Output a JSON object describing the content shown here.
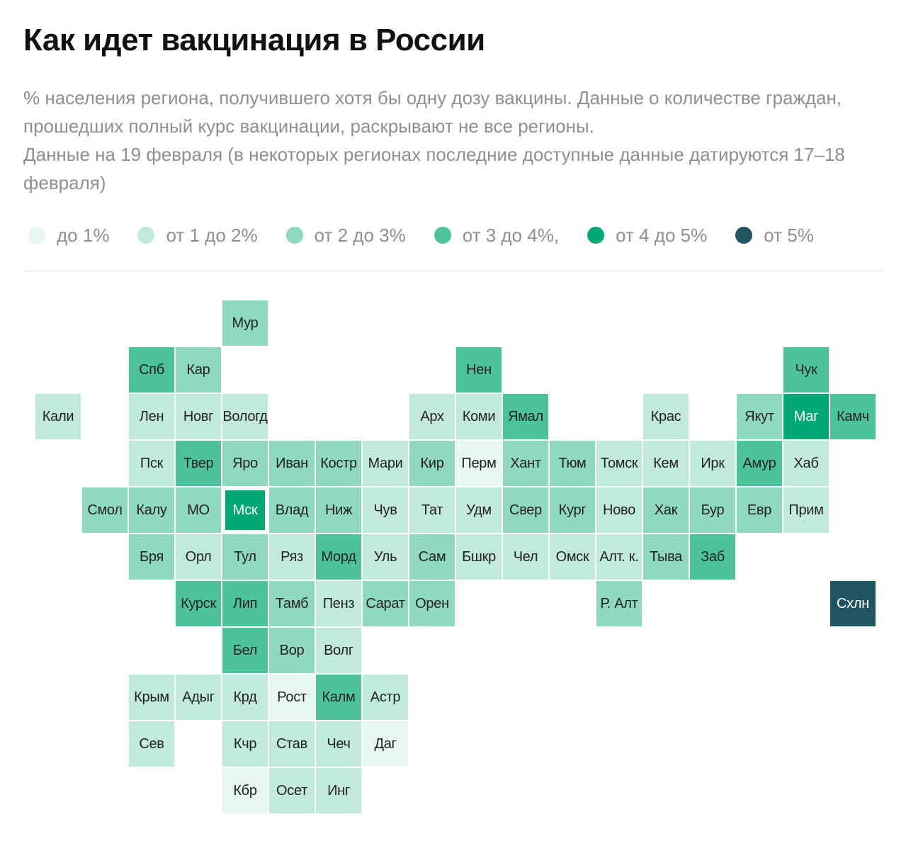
{
  "title": "Как идет вакцинация в России",
  "subtitle": {
    "line1": "% населения региона, получившего хотя бы одну дозу вакцины. Данные о количестве граждан, прошедших полный курс вакцинации, раскрывают не все регионы.",
    "line2": "Данные на 19 февраля (в некоторых регионах последние доступные данные датируются 17–18 февраля)"
  },
  "colors": {
    "c0": "#e6f6f0",
    "c1": "#c2eadb",
    "c2": "#8fd9be",
    "c3": "#4cc39b",
    "c4": "#00a874",
    "c5": "#1f5563"
  },
  "legend": [
    {
      "label": "до 1%",
      "bin": "c0"
    },
    {
      "label": "от 1 до 2%",
      "bin": "c1"
    },
    {
      "label": "от 2 до 3%",
      "bin": "c2"
    },
    {
      "label": "от 3 до 4%,",
      "bin": "c3"
    },
    {
      "label": "от 4 до 5%",
      "bin": "c4"
    },
    {
      "label": "от 5%",
      "bin": "c5"
    }
  ],
  "chart_data": {
    "type": "heatmap",
    "value_bins": [
      "до 1%",
      "от 1 до 2%",
      "от 2 до 3%",
      "от 3 до 4%,",
      "от 4 до 5%",
      "от 5%"
    ],
    "regions": [
      {
        "label": "Мур",
        "col": 4,
        "row": 0,
        "bin": 2
      },
      {
        "label": "Спб",
        "col": 2,
        "row": 1,
        "bin": 3
      },
      {
        "label": "Кар",
        "col": 3,
        "row": 1,
        "bin": 2
      },
      {
        "label": "Нен",
        "col": 9,
        "row": 1,
        "bin": 3
      },
      {
        "label": "Чук",
        "col": 16,
        "row": 1,
        "bin": 3
      },
      {
        "label": "Кали",
        "col": 0,
        "row": 2,
        "bin": 1
      },
      {
        "label": "Лен",
        "col": 2,
        "row": 2,
        "bin": 1
      },
      {
        "label": "Новг",
        "col": 3,
        "row": 2,
        "bin": 1
      },
      {
        "label": "Вологд",
        "col": 4,
        "row": 2,
        "bin": 1
      },
      {
        "label": "Арх",
        "col": 8,
        "row": 2,
        "bin": 1
      },
      {
        "label": "Коми",
        "col": 9,
        "row": 2,
        "bin": 1
      },
      {
        "label": "Ямал",
        "col": 10,
        "row": 2,
        "bin": 3
      },
      {
        "label": "Крас",
        "col": 13,
        "row": 2,
        "bin": 1
      },
      {
        "label": "Якут",
        "col": 15,
        "row": 2,
        "bin": 2
      },
      {
        "label": "Маг",
        "col": 16,
        "row": 2,
        "bin": 4
      },
      {
        "label": "Камч",
        "col": 17,
        "row": 2,
        "bin": 3
      },
      {
        "label": "Пск",
        "col": 2,
        "row": 3,
        "bin": 1
      },
      {
        "label": "Твер",
        "col": 3,
        "row": 3,
        "bin": 3
      },
      {
        "label": "Яро",
        "col": 4,
        "row": 3,
        "bin": 2
      },
      {
        "label": "Иван",
        "col": 5,
        "row": 3,
        "bin": 2
      },
      {
        "label": "Костр",
        "col": 6,
        "row": 3,
        "bin": 2
      },
      {
        "label": "Мари",
        "col": 7,
        "row": 3,
        "bin": 1
      },
      {
        "label": "Кир",
        "col": 8,
        "row": 3,
        "bin": 2
      },
      {
        "label": "Перм",
        "col": 9,
        "row": 3,
        "bin": 0
      },
      {
        "label": "Хант",
        "col": 10,
        "row": 3,
        "bin": 2
      },
      {
        "label": "Тюм",
        "col": 11,
        "row": 3,
        "bin": 2
      },
      {
        "label": "Томск",
        "col": 12,
        "row": 3,
        "bin": 1
      },
      {
        "label": "Кем",
        "col": 13,
        "row": 3,
        "bin": 1
      },
      {
        "label": "Ирк",
        "col": 14,
        "row": 3,
        "bin": 1
      },
      {
        "label": "Амур",
        "col": 15,
        "row": 3,
        "bin": 3
      },
      {
        "label": "Хаб",
        "col": 16,
        "row": 3,
        "bin": 1
      },
      {
        "label": "Смол",
        "col": 1,
        "row": 4,
        "bin": 2
      },
      {
        "label": "Калу",
        "col": 2,
        "row": 4,
        "bin": 2
      },
      {
        "label": "МО",
        "col": 3,
        "row": 4,
        "bin": 2
      },
      {
        "label": "Мск",
        "col": 4,
        "row": 4,
        "bin": 4
      },
      {
        "label": "Влад",
        "col": 5,
        "row": 4,
        "bin": 2
      },
      {
        "label": "Ниж",
        "col": 6,
        "row": 4,
        "bin": 2
      },
      {
        "label": "Чув",
        "col": 7,
        "row": 4,
        "bin": 1
      },
      {
        "label": "Тат",
        "col": 8,
        "row": 4,
        "bin": 1
      },
      {
        "label": "Удм",
        "col": 9,
        "row": 4,
        "bin": 1
      },
      {
        "label": "Свер",
        "col": 10,
        "row": 4,
        "bin": 2
      },
      {
        "label": "Кург",
        "col": 11,
        "row": 4,
        "bin": 2
      },
      {
        "label": "Ново",
        "col": 12,
        "row": 4,
        "bin": 1
      },
      {
        "label": "Хак",
        "col": 13,
        "row": 4,
        "bin": 2
      },
      {
        "label": "Бур",
        "col": 14,
        "row": 4,
        "bin": 2
      },
      {
        "label": "Евр",
        "col": 15,
        "row": 4,
        "bin": 2
      },
      {
        "label": "Прим",
        "col": 16,
        "row": 4,
        "bin": 1
      },
      {
        "label": "Бря",
        "col": 2,
        "row": 5,
        "bin": 2
      },
      {
        "label": "Орл",
        "col": 3,
        "row": 5,
        "bin": 1
      },
      {
        "label": "Тул",
        "col": 4,
        "row": 5,
        "bin": 2
      },
      {
        "label": "Ряз",
        "col": 5,
        "row": 5,
        "bin": 1
      },
      {
        "label": "Морд",
        "col": 6,
        "row": 5,
        "bin": 3
      },
      {
        "label": "Уль",
        "col": 7,
        "row": 5,
        "bin": 1
      },
      {
        "label": "Сам",
        "col": 8,
        "row": 5,
        "bin": 2
      },
      {
        "label": "Бшкр",
        "col": 9,
        "row": 5,
        "bin": 1
      },
      {
        "label": "Чел",
        "col": 10,
        "row": 5,
        "bin": 1
      },
      {
        "label": "Омск",
        "col": 11,
        "row": 5,
        "bin": 1
      },
      {
        "label": "Алт. к.",
        "col": 12,
        "row": 5,
        "bin": 1
      },
      {
        "label": "Тыва",
        "col": 13,
        "row": 5,
        "bin": 2
      },
      {
        "label": "Заб",
        "col": 14,
        "row": 5,
        "bin": 3
      },
      {
        "label": "Курск",
        "col": 3,
        "row": 6,
        "bin": 3
      },
      {
        "label": "Лип",
        "col": 4,
        "row": 6,
        "bin": 3
      },
      {
        "label": "Тамб",
        "col": 5,
        "row": 6,
        "bin": 2
      },
      {
        "label": "Пенз",
        "col": 6,
        "row": 6,
        "bin": 1
      },
      {
        "label": "Сарат",
        "col": 7,
        "row": 6,
        "bin": 2
      },
      {
        "label": "Орен",
        "col": 8,
        "row": 6,
        "bin": 2
      },
      {
        "label": "Р. Алт",
        "col": 12,
        "row": 6,
        "bin": 2
      },
      {
        "label": "Схлн",
        "col": 17,
        "row": 6,
        "bin": 5
      },
      {
        "label": "Бел",
        "col": 4,
        "row": 7,
        "bin": 3
      },
      {
        "label": "Вор",
        "col": 5,
        "row": 7,
        "bin": 2
      },
      {
        "label": "Волг",
        "col": 6,
        "row": 7,
        "bin": 1
      },
      {
        "label": "Крым",
        "col": 2,
        "row": 8,
        "bin": 1
      },
      {
        "label": "Адыг",
        "col": 3,
        "row": 8,
        "bin": 1
      },
      {
        "label": "Крд",
        "col": 4,
        "row": 8,
        "bin": 1
      },
      {
        "label": "Рост",
        "col": 5,
        "row": 8,
        "bin": 0
      },
      {
        "label": "Калм",
        "col": 6,
        "row": 8,
        "bin": 3
      },
      {
        "label": "Астр",
        "col": 7,
        "row": 8,
        "bin": 1
      },
      {
        "label": "Сев",
        "col": 2,
        "row": 9,
        "bin": 1
      },
      {
        "label": "Кчр",
        "col": 4,
        "row": 9,
        "bin": 1
      },
      {
        "label": "Став",
        "col": 5,
        "row": 9,
        "bin": 1
      },
      {
        "label": "Чеч",
        "col": 6,
        "row": 9,
        "bin": 1
      },
      {
        "label": "Даг",
        "col": 7,
        "row": 9,
        "bin": 0
      },
      {
        "label": "Кбр",
        "col": 4,
        "row": 10,
        "bin": 0
      },
      {
        "label": "Осет",
        "col": 5,
        "row": 10,
        "bin": 1
      },
      {
        "label": "Инг",
        "col": 6,
        "row": 10,
        "bin": 1
      }
    ],
    "highlighted_region": "Мск"
  }
}
